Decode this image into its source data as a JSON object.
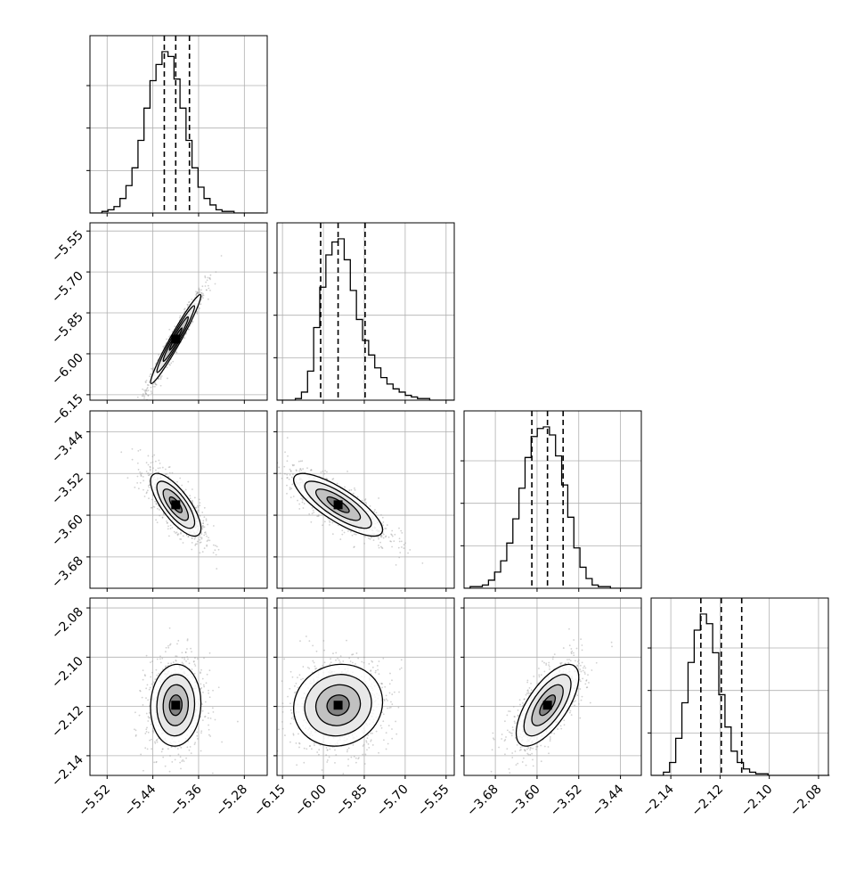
{
  "chart_data": {
    "type": "corner",
    "grid": true,
    "parameters": [
      {
        "range": [
          -5.55,
          -5.24
        ],
        "ticks": [
          -5.52,
          -5.44,
          -5.36,
          -5.28
        ],
        "tick_labels": [
          "−5.52",
          "−5.44",
          "−5.36",
          "−5.28"
        ],
        "quantiles": [
          -5.42,
          -5.4,
          -5.376
        ],
        "histogram": {
          "bin_start": -5.55,
          "bin_width": 0.0105,
          "counts": [
            0,
            0,
            1,
            2,
            4,
            9,
            17,
            28,
            45,
            65,
            82,
            92,
            100,
            97,
            83,
            65,
            45,
            28,
            16,
            9,
            5,
            2,
            1,
            1,
            0,
            0,
            0,
            0,
            0
          ]
        }
      },
      {
        "range": [
          -6.17,
          -5.52
        ],
        "ticks": [
          -6.15,
          -6.0,
          -5.85,
          -5.7,
          -5.55
        ],
        "tick_labels": [
          "−6.15",
          "−6.00",
          "−5.85",
          "−5.70",
          "−5.55"
        ],
        "quantiles": [
          -6.01,
          -5.946,
          -5.847
        ],
        "histogram": {
          "bin_start": -6.17,
          "bin_width": 0.0224,
          "counts": [
            0,
            0,
            0,
            1,
            5,
            18,
            45,
            70,
            90,
            98,
            100,
            87,
            68,
            50,
            37,
            28,
            20,
            14,
            10,
            7,
            5,
            3,
            2,
            1,
            1,
            0,
            0,
            0,
            0
          ]
        }
      },
      {
        "range": [
          -3.74,
          -3.4
        ],
        "ticks": [
          -3.68,
          -3.6,
          -3.52,
          -3.44
        ],
        "tick_labels": [
          "−3.68",
          "−3.60",
          "−3.52",
          "−3.44"
        ],
        "quantiles": [
          -3.61,
          -3.58,
          -3.55
        ],
        "histogram": {
          "bin_start": -3.74,
          "bin_width": 0.0117,
          "counts": [
            0,
            1,
            1,
            2,
            5,
            10,
            17,
            28,
            43,
            62,
            81,
            94,
            99,
            100,
            95,
            82,
            64,
            44,
            25,
            13,
            6,
            2,
            1,
            1,
            0,
            0,
            0,
            0,
            0
          ]
        }
      },
      {
        "range": [
          -2.148,
          -2.076
        ],
        "ticks": [
          -2.14,
          -2.12,
          -2.1,
          -2.08
        ],
        "tick_labels": [
          "−2.14",
          "−2.12",
          "−2.10",
          "−2.08"
        ],
        "quantiles": [
          -2.1278,
          -2.1195,
          -2.1112
        ],
        "histogram": {
          "bin_start": -2.148,
          "bin_width": 0.0025,
          "counts": [
            0,
            0,
            2,
            8,
            23,
            45,
            70,
            90,
            100,
            94,
            76,
            50,
            30,
            15,
            8,
            4,
            2,
            1,
            1,
            0,
            0,
            0,
            0,
            0,
            0,
            0,
            0,
            0,
            0
          ]
        }
      }
    ],
    "correlations": [
      {
        "row": 1,
        "col": 0,
        "rho": 0.97
      },
      {
        "row": 2,
        "col": 0,
        "rho": -0.75
      },
      {
        "row": 2,
        "col": 1,
        "rho": -0.8
      },
      {
        "row": 3,
        "col": 0,
        "rho": 0.05
      },
      {
        "row": 3,
        "col": 1,
        "rho": 0.08
      },
      {
        "row": 3,
        "col": 2,
        "rho": 0.68
      }
    ]
  }
}
